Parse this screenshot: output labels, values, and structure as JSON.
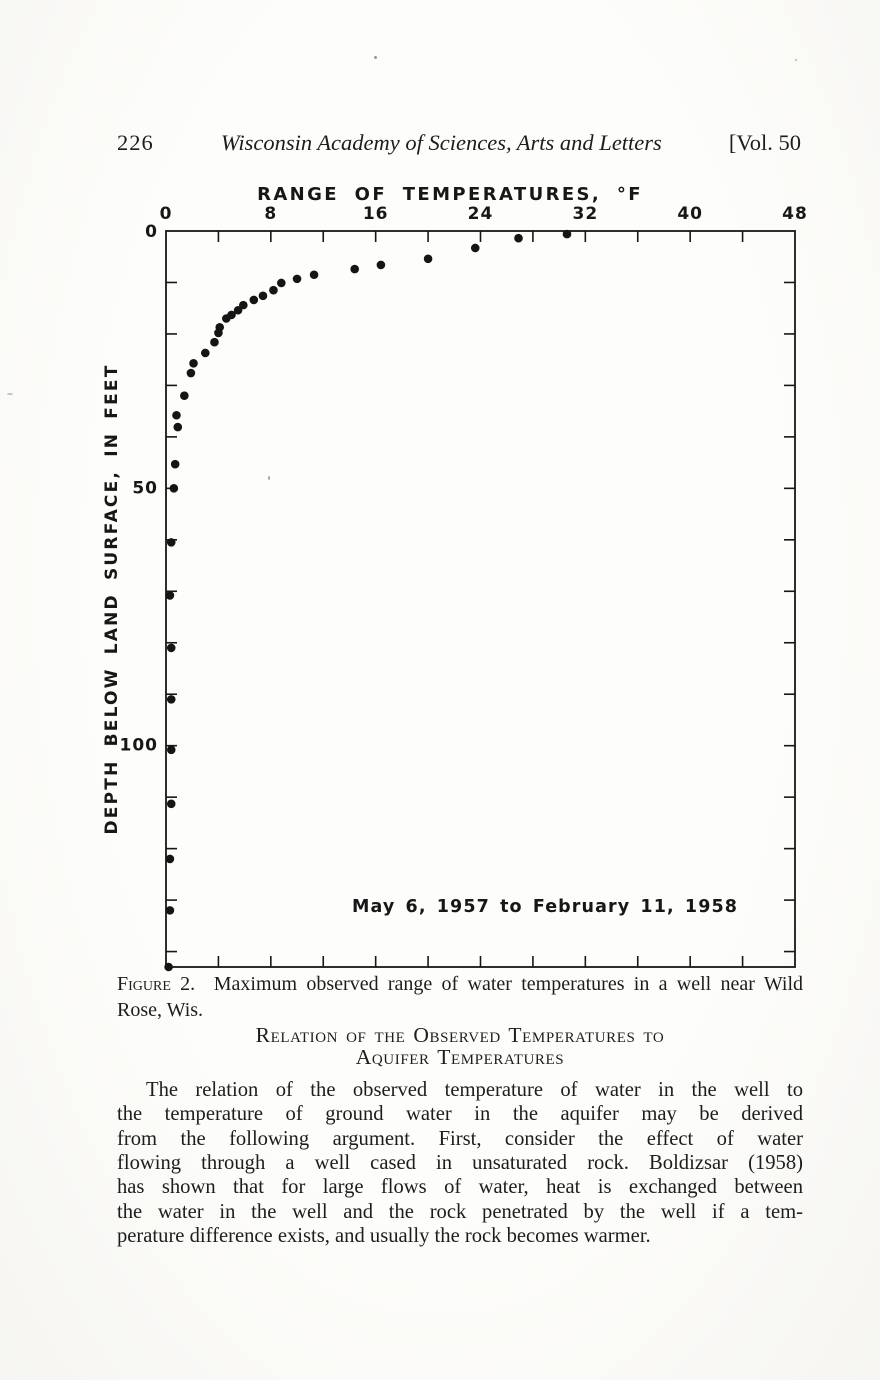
{
  "header": {
    "page_number": "226",
    "journal_title": "Wisconsin Academy of Sciences, Arts and Letters",
    "volume": "[Vol. 50"
  },
  "chart_data": {
    "type": "scatter",
    "title": "RANGE OF TEMPERATURES, °F",
    "xlabel": "RANGE OF TEMPERATURES, °F",
    "ylabel": "DEPTH BELOW LAND SURFACE, IN FEET",
    "x_axis_position": "top",
    "y_axis_inverted": true,
    "xlim": [
      0,
      48
    ],
    "ylim": [
      0,
      143
    ],
    "x_major_ticks": [
      0,
      8,
      16,
      24,
      32,
      40,
      48
    ],
    "x_minor_tick_step": 4,
    "y_tick_step": 10,
    "y_labeled_ticks": [
      0,
      50,
      100
    ],
    "grid": false,
    "legend": "none",
    "frame": "box-with-inward-ticks",
    "marker": "filled-circle",
    "annotation": "May 6, 1957 to February 11, 1958",
    "x_unit": "degrees F",
    "y_unit": "feet",
    "points": [
      [
        30.6,
        0.6
      ],
      [
        26.9,
        1.4
      ],
      [
        23.6,
        3.3
      ],
      [
        20.0,
        5.4
      ],
      [
        16.4,
        6.6
      ],
      [
        14.4,
        7.4
      ],
      [
        11.3,
        8.5
      ],
      [
        10.0,
        9.3
      ],
      [
        8.8,
        10.1
      ],
      [
        8.2,
        11.5
      ],
      [
        7.4,
        12.6
      ],
      [
        6.7,
        13.4
      ],
      [
        5.9,
        14.4
      ],
      [
        5.5,
        15.4
      ],
      [
        5.0,
        16.3
      ],
      [
        4.6,
        17.0
      ],
      [
        4.1,
        18.7
      ],
      [
        4.0,
        19.8
      ],
      [
        3.7,
        21.6
      ],
      [
        3.0,
        23.7
      ],
      [
        2.1,
        25.7
      ],
      [
        1.9,
        27.6
      ],
      [
        1.4,
        32.0
      ],
      [
        0.8,
        35.8
      ],
      [
        0.9,
        38.1
      ],
      [
        0.7,
        45.3
      ],
      [
        0.6,
        50.0
      ],
      [
        0.4,
        60.5
      ],
      [
        0.3,
        70.8
      ],
      [
        0.4,
        81.0
      ],
      [
        0.4,
        91.0
      ],
      [
        0.4,
        100.8
      ],
      [
        0.4,
        111.3
      ],
      [
        0.3,
        122.0
      ],
      [
        0.3,
        132.0
      ],
      [
        0.2,
        143.0
      ]
    ]
  },
  "figure": {
    "caption_label": "Figure 2.",
    "caption_line1": "Maximum observed range of water temperatures in a well near Wild",
    "caption_line2": "Rose, Wis."
  },
  "section": {
    "heading_line1": "Relation of the Observed Temperatures to",
    "heading_line2": "Aquifer Temperatures",
    "paragraph_lines": [
      "The relation of the observed temperature of water in the well to",
      "the temperature of ground water in the aquifer may be derived",
      "from the following argument. First, consider the effect of water",
      "flowing through a well cased in unsaturated rock. Boldizsar (1958)",
      "has shown that for large flows of water, heat is exchanged between",
      "the water in the well and the rock penetrated by the well if a tem-",
      "perature difference exists, and usually the rock becomes warmer."
    ]
  },
  "colors": {
    "ink": "#1d1d1d",
    "chart_ink": "#171717",
    "paper": "#fbfbf8"
  }
}
